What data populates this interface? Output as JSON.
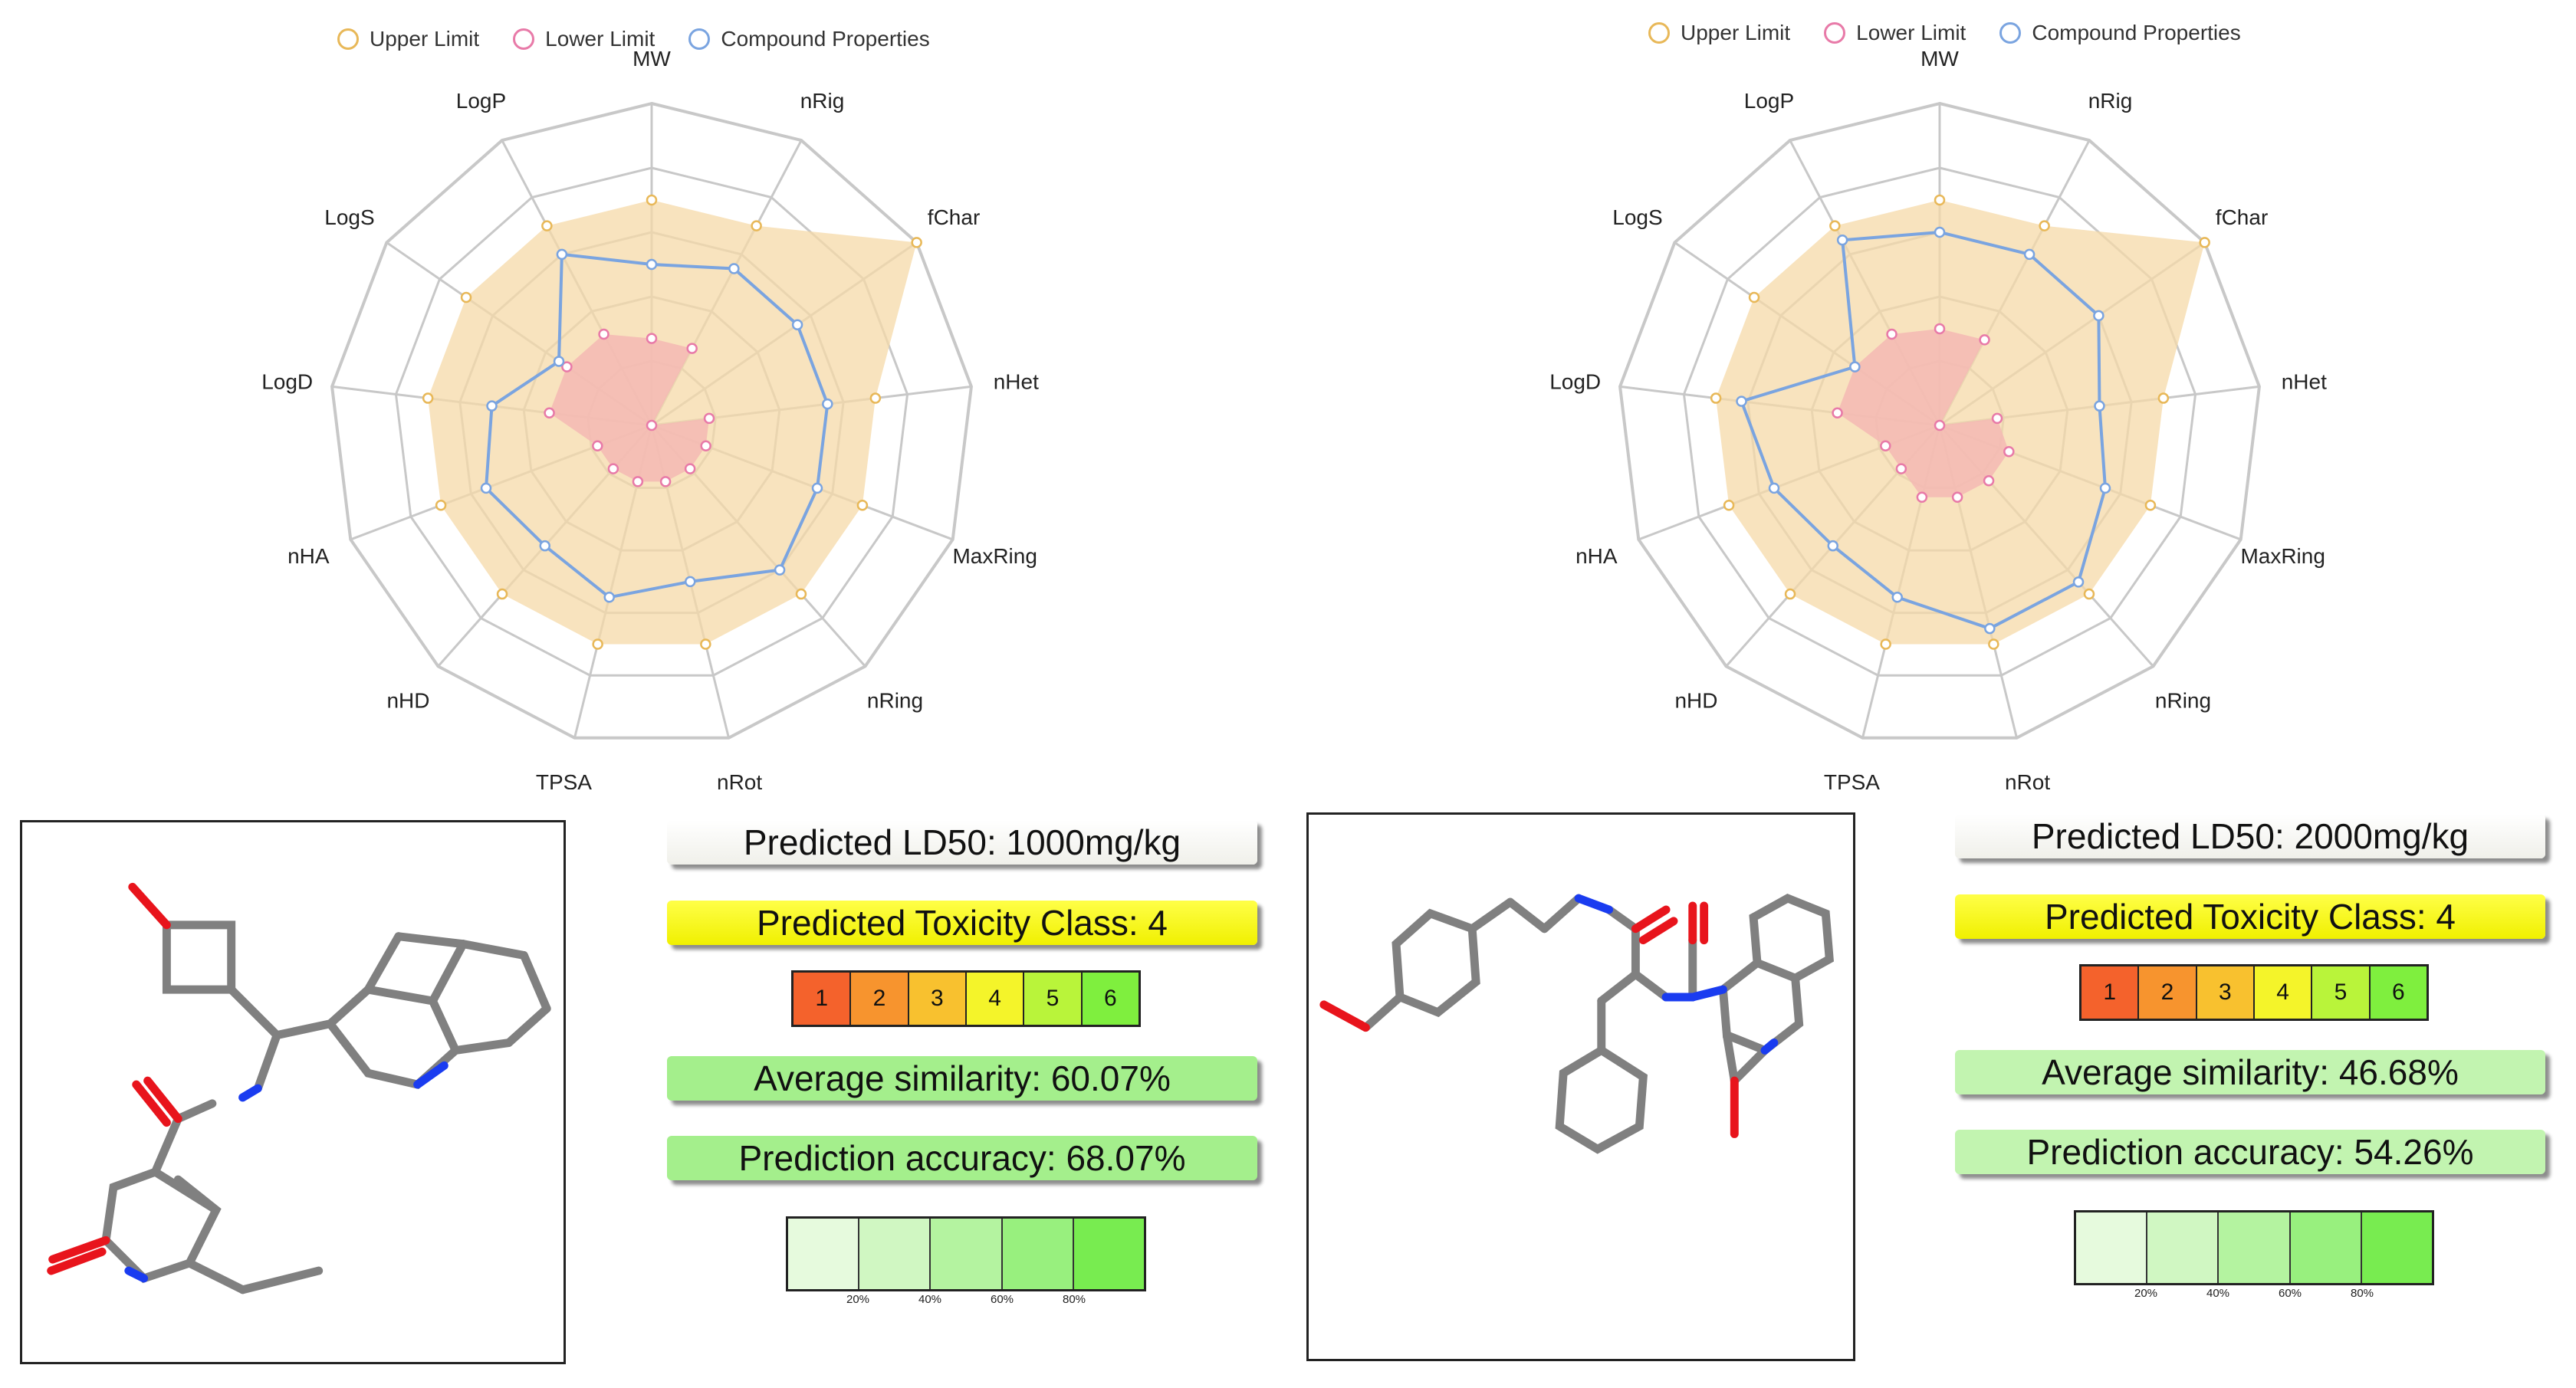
{
  "chart_data": [
    {
      "type": "radar",
      "axes": [
        "MW",
        "nRig",
        "fChar",
        "nHet",
        "MaxRing",
        "nRing",
        "nRot",
        "TPSA",
        "nHD",
        "nHA",
        "LogD",
        "LogS",
        "LogP"
      ],
      "rlim": [
        0,
        1
      ],
      "series": [
        {
          "name": "Upper Limit",
          "values": [
            0.7,
            0.7,
            1.0,
            0.7,
            0.7,
            0.7,
            0.7,
            0.7,
            0.7,
            0.7,
            0.7,
            0.7,
            0.7
          ]
        },
        {
          "name": "Lower Limit",
          "values": [
            0.27,
            0.27,
            0.0,
            0.18,
            0.18,
            0.18,
            0.18,
            0.18,
            0.18,
            0.18,
            0.32,
            0.32,
            0.32
          ]
        },
        {
          "name": "Compound Properties",
          "values": [
            0.5,
            0.55,
            0.55,
            0.55,
            0.55,
            0.6,
            0.5,
            0.55,
            0.5,
            0.55,
            0.5,
            0.35,
            0.6
          ]
        }
      ],
      "legend": "top-center"
    },
    {
      "type": "radar",
      "axes": [
        "MW",
        "nRig",
        "fChar",
        "nHet",
        "MaxRing",
        "nRing",
        "nRot",
        "TPSA",
        "nHD",
        "nHA",
        "LogD",
        "LogS",
        "LogP"
      ],
      "rlim": [
        0,
        1
      ],
      "series": [
        {
          "name": "Upper Limit",
          "values": [
            0.7,
            0.7,
            1.0,
            0.7,
            0.7,
            0.7,
            0.7,
            0.7,
            0.7,
            0.7,
            0.7,
            0.7,
            0.7
          ]
        },
        {
          "name": "Lower Limit",
          "values": [
            0.3,
            0.3,
            0.0,
            0.18,
            0.23,
            0.23,
            0.23,
            0.23,
            0.18,
            0.18,
            0.32,
            0.32,
            0.32
          ]
        },
        {
          "name": "Compound Properties",
          "values": [
            0.6,
            0.6,
            0.6,
            0.5,
            0.55,
            0.65,
            0.65,
            0.55,
            0.5,
            0.55,
            0.62,
            0.32,
            0.65
          ]
        }
      ],
      "legend": "top-center"
    }
  ],
  "legend_labels": {
    "upper": "Upper Limit",
    "lower": "Lower Limit",
    "compound": "Compound Properties"
  },
  "colors": {
    "upper_line": "#e8b858",
    "upper_fill": "#f6d9a8",
    "lower_line": "#e87aa8",
    "lower_fill": "#f4b8b4",
    "compound_line": "#7aa4e0",
    "grid": "#c8c8c8"
  },
  "left": {
    "ld50": "Predicted LD50: 1000mg/kg",
    "toxicity_class": "Predicted Toxicity Class: 4",
    "similarity": "Average similarity: 60.07%",
    "accuracy": "Prediction accuracy: 68.07%",
    "similarity_color": "#a4ef8c",
    "accuracy_color": "#a4ef8c"
  },
  "right": {
    "ld50": "Predicted LD50: 2000mg/kg",
    "toxicity_class": "Predicted Toxicity Class: 4",
    "similarity": "Average similarity: 46.68%",
    "accuracy": "Prediction accuracy: 54.26%",
    "similarity_color": "#c2f4b0",
    "accuracy_color": "#c2f4b0"
  },
  "class_scale": {
    "labels": [
      "1",
      "2",
      "3",
      "4",
      "5",
      "6"
    ],
    "colors": [
      "#f4622c",
      "#f7942e",
      "#f8c12f",
      "#f4f42a",
      "#b9f43a",
      "#7fef3e"
    ]
  },
  "similarity_scale": {
    "ticks": [
      "20%",
      "40%",
      "60%",
      "80%"
    ],
    "colors": [
      "#e6fadd",
      "#d0f7c2",
      "#b4f3a0",
      "#98f07e",
      "#78ec50"
    ]
  }
}
